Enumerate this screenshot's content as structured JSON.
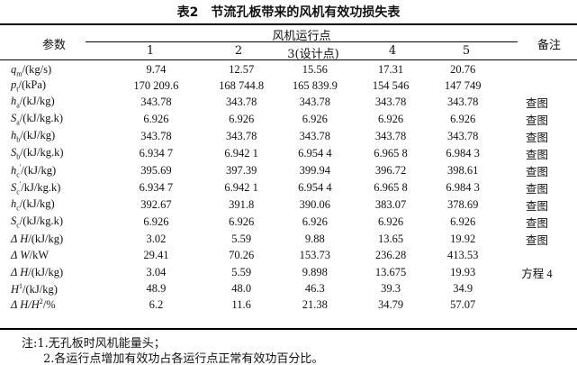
{
  "title": "表2　节流孔板带来的风机有效功损失表",
  "header": {
    "param": "参数",
    "group": "风机运行点",
    "remark": "备注",
    "points": [
      "1",
      "2",
      "3(设计点)",
      "4",
      "5"
    ]
  },
  "rows": [
    {
      "sym": "q",
      "sub": "m",
      "sup": "",
      "unit": "/(kg/s)",
      "values": [
        "9.74",
        "12.57",
        "15.56",
        "17.31",
        "20.76"
      ],
      "remark": ""
    },
    {
      "sym": "p",
      "sub": "t",
      "sup": "",
      "unit": "/(kPa)",
      "values": [
        "170 209.6",
        "168 744.8",
        "165 839.9",
        "154 546",
        "147 749"
      ],
      "remark": ""
    },
    {
      "sym": "h",
      "sub": "a",
      "sup": "",
      "unit": "/(kJ/kg)",
      "values": [
        "343.78",
        "343.78",
        "343.78",
        "343.78",
        "343.78"
      ],
      "remark": "查图"
    },
    {
      "sym": "S",
      "sub": "a",
      "sup": "",
      "unit": "/(kJ/kg.k)",
      "values": [
        "6.926",
        "6.926",
        "6.926",
        "6.926",
        "6.926"
      ],
      "remark": "查图"
    },
    {
      "sym": "h",
      "sub": "b",
      "sup": "",
      "unit": "/(kJ/kg)",
      "values": [
        "343.78",
        "343.78",
        "343.78",
        "343.78",
        "343.78"
      ],
      "remark": "查图"
    },
    {
      "sym": "S",
      "sub": "b",
      "sup": "",
      "unit": "/(kJ/kg.k)",
      "values": [
        "6.934 7",
        "6.942 1",
        "6.954 4",
        "6.965 8",
        "6.984 3"
      ],
      "remark": "查图"
    },
    {
      "sym": "h",
      "sub": "c",
      "sup": "'",
      "unit": "/(kJ/kg)",
      "values": [
        "395.69",
        "397.39",
        "399.94",
        "396.72",
        "398.61"
      ],
      "remark": "查图"
    },
    {
      "sym": "S",
      "sub": "c",
      "sup": "'",
      "unit": "/kJ/kg.k)",
      "values": [
        "6.934 7",
        "6.942 1",
        "6.954 4",
        "6.965 8",
        "6.984 3"
      ],
      "remark": "查图"
    },
    {
      "sym": "h",
      "sub": "c",
      "sup": "",
      "unit": "/(kJ/kg)",
      "values": [
        "392.67",
        "391.8",
        "390.06",
        "383.07",
        "378.69"
      ],
      "remark": "查图"
    },
    {
      "sym": "S",
      "sub": "c",
      "sup": "",
      "unit": "/(kJ/kg.k)",
      "values": [
        "6.926",
        "6.926",
        "6.926",
        "6.926",
        "6.926"
      ],
      "remark": "查图"
    },
    {
      "sym": "Δ H",
      "sub": "",
      "sup": "",
      "unit": "/(kJ/kg)",
      "values": [
        "3.02",
        "5.59",
        "9.88",
        "13.65",
        "19.92"
      ],
      "remark": "查图"
    },
    {
      "sym": "Δ W",
      "sub": "",
      "sup": "",
      "unit": "/kW",
      "values": [
        "29.41",
        "70.26",
        "153.73",
        "236.28",
        "413.53"
      ],
      "remark": ""
    },
    {
      "sym": "Δ H",
      "sub": "",
      "sup": "",
      "unit": "/(kJ/kg)",
      "values": [
        "3.04",
        "5.59",
        "9.898",
        "13.675",
        "19.93"
      ],
      "remark": "方程 4"
    },
    {
      "sym": "H",
      "sub": "",
      "sup": "1",
      "unit": "/(kJ/kg)",
      "values": [
        "48.9",
        "48.0",
        "46.3",
        "39.3",
        "34.9"
      ],
      "remark": ""
    },
    {
      "sym": "Δ H/H",
      "sub": "",
      "sup": "2",
      "unit": "/%",
      "values": [
        "6.2",
        "11.6",
        "21.38",
        "34.79",
        "57.07"
      ],
      "remark": ""
    }
  ],
  "notes": [
    "注:1.无孔板时风机能量头；",
    "2.各运行点增加有效功占各运行点正常有效功百分比。"
  ]
}
